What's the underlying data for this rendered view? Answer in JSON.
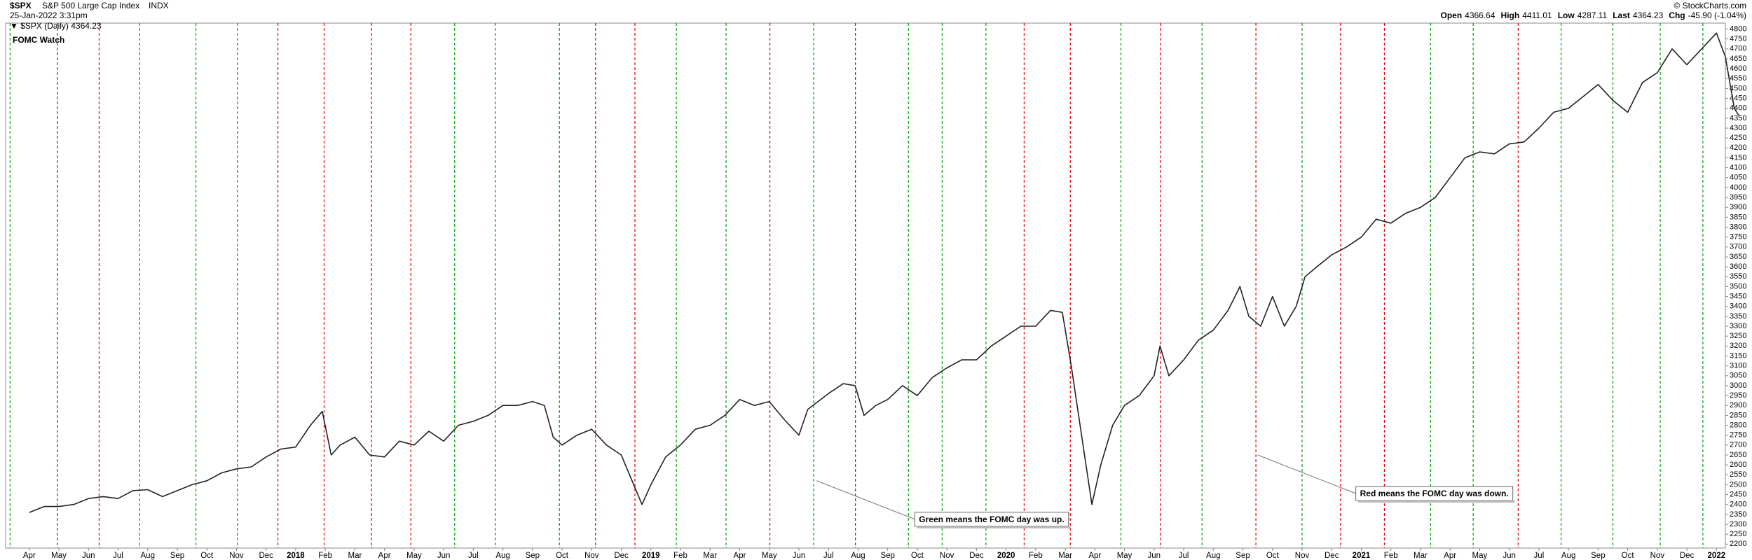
{
  "chart_data": {
    "type": "line",
    "header": {
      "symbol": "$SPX",
      "name": "S&P 500 Large Cap Index",
      "exchange": "INDX",
      "timestamp": "25-Jan-2022 3:31pm",
      "copyright": "© StockCharts.com",
      "legend": "▼ $SPX (Daily) 4364.23",
      "ohlc": [
        {
          "name": "Open",
          "value": 4366.64
        },
        {
          "name": "High",
          "value": 4411.01
        },
        {
          "name": "Low",
          "value": 4287.11
        },
        {
          "name": "Last",
          "value": 4364.23
        },
        {
          "name": "Chg",
          "value": {
            "value": -45.9,
            "label": "-45.90 (-1.04%)"
          }
        }
      ]
    },
    "title": "FOMC Watch",
    "annotations": [
      {
        "text": "Green means the FOMC day was up.",
        "color": "#008000",
        "x": 26.6,
        "y": 2520
      },
      {
        "text": "Red means the FOMC day was down.",
        "color": "#e00000",
        "x": 41.5,
        "y": 2650
      }
    ],
    "categories": [
      "Apr",
      "May",
      "Jun",
      "Jul",
      "Aug",
      "Sep",
      "Oct",
      "Nov",
      "Dec",
      "2018",
      "Feb",
      "Mar",
      "Apr",
      "May",
      "Jun",
      "Jul",
      "Aug",
      "Sep",
      "Oct",
      "Nov",
      "Dec",
      "2019",
      "Feb",
      "Mar",
      "Apr",
      "May",
      "Jun",
      "Jul",
      "Aug",
      "Sep",
      "Oct",
      "Nov",
      "Dec",
      "2020",
      "Feb",
      "Mar",
      "Apr",
      "May",
      "Jun",
      "Jul",
      "Aug",
      "Sep",
      "Oct",
      "Nov",
      "Dec",
      "2021",
      "Feb",
      "Mar",
      "Apr",
      "May",
      "Jun",
      "Jul",
      "Aug",
      "Sep",
      "Oct",
      "Nov",
      "Dec",
      "2022"
    ],
    "series": [
      {
        "name": "$SPX (Daily)",
        "color": "#222222",
        "x": [
          0,
          0.5,
          1,
          1.5,
          2,
          2.5,
          3,
          3.5,
          4,
          4.5,
          5,
          5.5,
          6,
          6.5,
          7,
          7.5,
          8,
          8.5,
          9,
          9.5,
          9.9,
          10.2,
          10.5,
          11,
          11.5,
          12,
          12.5,
          13,
          13.5,
          14,
          14.5,
          15,
          15.5,
          16,
          16.5,
          17,
          17.4,
          17.7,
          18,
          18.5,
          19,
          19.5,
          20,
          20.7,
          21,
          21.5,
          22,
          22.5,
          23,
          23.5,
          24,
          24.5,
          25,
          25.5,
          26,
          26.3,
          27,
          27.5,
          27.9,
          28.2,
          28.6,
          29,
          29.5,
          30,
          30.5,
          31,
          31.5,
          32,
          32.5,
          33,
          33.5,
          34,
          34.5,
          34.9,
          35.2,
          35.6,
          35.9,
          36.2,
          36.6,
          37,
          37.5,
          38,
          38.2,
          38.5,
          39,
          39.5,
          40,
          40.5,
          40.9,
          41.2,
          41.6,
          42,
          42.4,
          42.8,
          43.1,
          43.5,
          44,
          44.5,
          45,
          45.5,
          46,
          46.5,
          47,
          47.5,
          48,
          48.5,
          49,
          49.5,
          50,
          50.5,
          51,
          51.5,
          52,
          52.5,
          53,
          53.5,
          54,
          54.5,
          55,
          55.5,
          56,
          56.5,
          57,
          57.3,
          57.6,
          57.75
        ],
        "values": [
          2360,
          2390,
          2390,
          2400,
          2430,
          2440,
          2430,
          2470,
          2475,
          2440,
          2470,
          2500,
          2520,
          2560,
          2580,
          2590,
          2640,
          2680,
          2690,
          2800,
          2870,
          2650,
          2700,
          2740,
          2650,
          2640,
          2720,
          2700,
          2770,
          2720,
          2800,
          2820,
          2850,
          2900,
          2900,
          2920,
          2900,
          2740,
          2700,
          2750,
          2780,
          2700,
          2650,
          2400,
          2500,
          2640,
          2700,
          2780,
          2800,
          2850,
          2930,
          2900,
          2920,
          2830,
          2750,
          2880,
          2960,
          3010,
          3000,
          2850,
          2900,
          2930,
          3000,
          2950,
          3040,
          3090,
          3130,
          3130,
          3200,
          3250,
          3300,
          3300,
          3380,
          3370,
          3100,
          2700,
          2400,
          2600,
          2800,
          2900,
          2950,
          3050,
          3200,
          3050,
          3130,
          3230,
          3280,
          3380,
          3500,
          3350,
          3300,
          3450,
          3300,
          3400,
          3550,
          3600,
          3660,
          3700,
          3750,
          3840,
          3820,
          3870,
          3900,
          3950,
          4050,
          4150,
          4180,
          4170,
          4220,
          4230,
          4300,
          4380,
          4400,
          4460,
          4520,
          4440,
          4380,
          4530,
          4580,
          4700,
          4620,
          4700,
          4780,
          4660,
          4400,
          4364.23
        ]
      }
    ],
    "fomc": [
      {
        "x": -0.65,
        "color": "#00a000"
      },
      {
        "x": 0.95,
        "color": "#e00000"
      },
      {
        "x": 2.36,
        "color": "#e00000"
      },
      {
        "x": 3.73,
        "color": "#00a000"
      },
      {
        "x": 5.63,
        "color": "#00a000"
      },
      {
        "x": 7.03,
        "color": "#00a000"
      },
      {
        "x": 8.4,
        "color": "#e00000"
      },
      {
        "x": 9.96,
        "color": "#e00000"
      },
      {
        "x": 11.56,
        "color": "#e00000"
      },
      {
        "x": 12.89,
        "color": "#e00000"
      },
      {
        "x": 14.37,
        "color": "#00a000"
      },
      {
        "x": 15.74,
        "color": "#00a000"
      },
      {
        "x": 17.91,
        "color": "#00a000"
      },
      {
        "x": 19.13,
        "color": "#e00000"
      },
      {
        "x": 20.46,
        "color": "#e00000"
      },
      {
        "x": 21.86,
        "color": "#00a000"
      },
      {
        "x": 23.54,
        "color": "#00a000"
      },
      {
        "x": 25.02,
        "color": "#e00000"
      },
      {
        "x": 26.5,
        "color": "#00a000"
      },
      {
        "x": 27.91,
        "color": "#e00000"
      },
      {
        "x": 29.7,
        "color": "#00a000"
      },
      {
        "x": 30.84,
        "color": "#00a000"
      },
      {
        "x": 32.32,
        "color": "#00a000"
      },
      {
        "x": 33.61,
        "color": "#e00000"
      },
      {
        "x": 35.17,
        "color": "#e00000"
      },
      {
        "x": 36.88,
        "color": "#00a000"
      },
      {
        "x": 38.21,
        "color": "#e00000"
      },
      {
        "x": 39.62,
        "color": "#00a000"
      },
      {
        "x": 41.44,
        "color": "#e00000"
      },
      {
        "x": 43.0,
        "color": "#00a000"
      },
      {
        "x": 44.3,
        "color": "#e00000"
      },
      {
        "x": 45.78,
        "color": "#e00000"
      },
      {
        "x": 47.34,
        "color": "#00a000"
      },
      {
        "x": 48.78,
        "color": "#00a000"
      },
      {
        "x": 50.3,
        "color": "#e00000"
      },
      {
        "x": 51.75,
        "color": "#00a000"
      },
      {
        "x": 53.5,
        "color": "#00a000"
      },
      {
        "x": 55.1,
        "color": "#00a000"
      },
      {
        "x": 56.54,
        "color": "#00a000"
      }
    ],
    "xlim": [
      -0.8,
      57.3
    ],
    "ylim": [
      2180,
      4830
    ],
    "yticks": [
      2200,
      2250,
      2300,
      2350,
      2400,
      2450,
      2500,
      2550,
      2600,
      2650,
      2700,
      2750,
      2800,
      2850,
      2900,
      2950,
      3000,
      3050,
      3100,
      3150,
      3200,
      3250,
      3300,
      3350,
      3400,
      3450,
      3500,
      3550,
      3600,
      3650,
      3700,
      3750,
      3800,
      3850,
      3900,
      3950,
      4000,
      4050,
      4100,
      4150,
      4200,
      4250,
      4300,
      4350,
      4400,
      4450,
      4500,
      4550,
      4600,
      4650,
      4700,
      4750,
      4800
    ]
  }
}
